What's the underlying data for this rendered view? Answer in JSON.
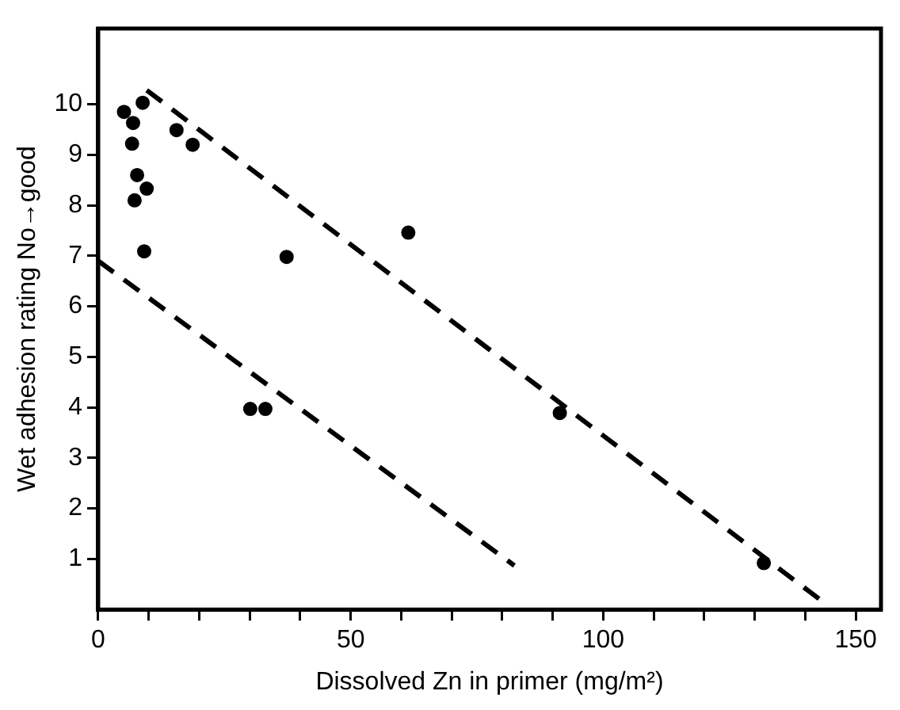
{
  "chart_data": {
    "type": "scatter",
    "xlabel": "Dissolved Zn in primer (mg/m²)",
    "ylabel": "Wet adhesion rating No→good",
    "xlim": [
      0,
      155
    ],
    "xticks": [
      0,
      {
        "value": 10,
        "label": null
      },
      {
        "value": 20,
        "label": null
      },
      {
        "value": 30,
        "label": null
      },
      {
        "value": 40,
        "label": null
      },
      50,
      {
        "value": 60,
        "label": null
      },
      {
        "value": 70,
        "label": null
      },
      {
        "value": 80,
        "label": null
      },
      {
        "value": 90,
        "label": null
      },
      100,
      {
        "value": 110,
        "label": null
      },
      {
        "value": 120,
        "label": null
      },
      {
        "value": 130,
        "label": null
      },
      {
        "value": 140,
        "label": null
      },
      150
    ],
    "ylim": [
      0,
      11.5
    ],
    "yticks": [
      1,
      2,
      3,
      4,
      5,
      6,
      7,
      8,
      9,
      10
    ],
    "grid": false,
    "legend": false,
    "series": [
      {
        "type": "scatter",
        "marker": "circle",
        "color": "#000000",
        "x": [
          5.1,
          6.9,
          8.8,
          6.7,
          7.7,
          9.6,
          7.2,
          9.1,
          15.5,
          18.7,
          37.3,
          61.4,
          30.1,
          33.1,
          91.4,
          131.8
        ],
        "values": [
          9.85,
          9.63,
          10.03,
          9.22,
          8.6,
          8.33,
          8.1,
          7.09,
          9.49,
          9.2,
          6.98,
          7.46,
          3.97,
          3.97,
          3.89,
          0.92
        ]
      },
      {
        "type": "line",
        "marker": "none",
        "line_style": "dashed",
        "color": "#000000",
        "x": [
          9.6,
          143.4
        ],
        "values": [
          10.28,
          0.16
        ]
      },
      {
        "type": "line",
        "marker": "none",
        "line_style": "dashed",
        "color": "#000000",
        "x": [
          0,
          82.4
        ],
        "values": [
          6.9,
          0.87
        ]
      }
    ]
  }
}
